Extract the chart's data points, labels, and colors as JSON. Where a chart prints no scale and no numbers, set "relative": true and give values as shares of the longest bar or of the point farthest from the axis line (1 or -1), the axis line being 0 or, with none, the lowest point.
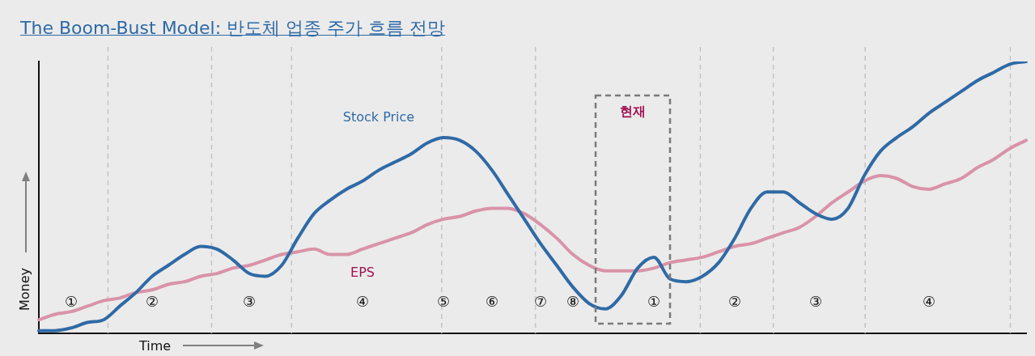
{
  "chart_data": {
    "type": "line",
    "title": "The Boom-Bust Model: 반도체 업종 주가 흐름 전망",
    "xlabel": "Time",
    "ylabel": "Money",
    "relative": true,
    "legend": false,
    "grid": "x",
    "tick_labels": "x",
    "marker": "none",
    "line_style": "solid",
    "categories": [
      null,
      null,
      "①",
      null,
      null,
      null,
      null,
      "②",
      null,
      null,
      null,
      null,
      null,
      "③",
      null,
      null,
      null,
      null,
      null,
      null,
      "④",
      null,
      null,
      null,
      null,
      "⑤",
      null,
      null,
      "⑥",
      null,
      null,
      "⑦",
      null,
      "⑧",
      null,
      null,
      null,
      null,
      "①",
      null,
      null,
      null,
      null,
      "②",
      null,
      null,
      null,
      null,
      "③",
      null,
      null,
      null,
      null,
      null,
      null,
      "④",
      null,
      null,
      null,
      null,
      null,
      null
    ],
    "series": [
      {
        "name": "Stock Price",
        "color": "#2f6aa6",
        "values": [
          0.01,
          0.01,
          0.02,
          0.04,
          0.05,
          0.1,
          0.15,
          0.21,
          0.25,
          0.29,
          0.32,
          0.31,
          0.27,
          0.22,
          0.21,
          0.25,
          0.35,
          0.44,
          0.49,
          0.53,
          0.56,
          0.6,
          0.63,
          0.66,
          0.7,
          0.72,
          0.71,
          0.67,
          0.6,
          0.51,
          0.42,
          0.33,
          0.25,
          0.17,
          0.11,
          0.09,
          0.14,
          0.24,
          0.28,
          0.2,
          0.19,
          0.21,
          0.26,
          0.35,
          0.46,
          0.52,
          0.52,
          0.48,
          0.44,
          0.42,
          0.46,
          0.58,
          0.67,
          0.72,
          0.76,
          0.81,
          0.85,
          0.89,
          0.93,
          0.96,
          0.99,
          1
        ]
      },
      {
        "name": "EPS",
        "color": "#d993a8",
        "values": [
          0.05,
          0.07,
          0.08,
          0.1,
          0.12,
          0.13,
          0.15,
          0.16,
          0.18,
          0.19,
          0.21,
          0.22,
          0.24,
          0.25,
          0.27,
          0.29,
          0.3,
          0.31,
          0.29,
          0.29,
          0.31,
          0.33,
          0.35,
          0.37,
          0.4,
          0.42,
          0.43,
          0.45,
          0.46,
          0.46,
          0.44,
          0.4,
          0.35,
          0.29,
          0.25,
          0.23,
          0.23,
          0.23,
          0.24,
          0.26,
          0.27,
          0.28,
          0.3,
          0.32,
          0.33,
          0.35,
          0.37,
          0.39,
          0.43,
          0.48,
          0.52,
          0.56,
          0.58,
          0.57,
          0.54,
          0.53,
          0.55,
          0.57,
          0.61,
          0.64,
          0.68,
          0.71
        ]
      }
    ],
    "annotations": [
      "현재"
    ]
  }
}
